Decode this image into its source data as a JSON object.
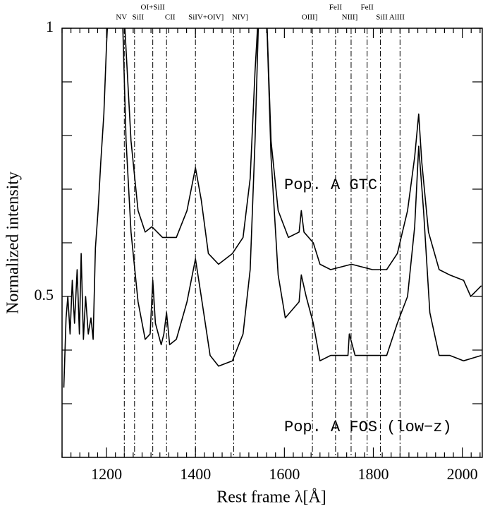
{
  "chart_data": {
    "type": "line",
    "xlabel": "Rest frame λ[Å]",
    "ylabel": "Normalized intensity",
    "xlim": [
      1100,
      2045
    ],
    "ylim": [
      0.2,
      1
    ],
    "xticks": [
      1200,
      1400,
      1600,
      1800,
      2000
    ],
    "xminorticks": [
      1100,
      1120,
      1140,
      1160,
      1180,
      1220,
      1240,
      1260,
      1280,
      1300,
      1320,
      1340,
      1360,
      1380,
      1420,
      1440,
      1460,
      1480,
      1500,
      1520,
      1540,
      1560,
      1580,
      1620,
      1640,
      1660,
      1680,
      1700,
      1720,
      1740,
      1760,
      1780,
      1820,
      1840,
      1860,
      1880,
      1900,
      1920,
      1940,
      1960,
      1980,
      2020,
      2040
    ],
    "yticks": [
      0.5,
      1
    ],
    "yminorticks": [
      0.3,
      0.4,
      0.6,
      0.7,
      0.8,
      0.9
    ],
    "annotations": [
      "Pop. A GTC",
      "Pop. A FOS (low−z)"
    ],
    "lines": [
      {
        "wavelength": 1240,
        "label": "NV"
      },
      {
        "wavelength": 1263,
        "label": "SiII"
      },
      {
        "wavelength": 1304,
        "label": "OI+SiII"
      },
      {
        "wavelength": 1335,
        "label": "CII"
      },
      {
        "wavelength": 1400,
        "label": "SiIV+OIV]"
      },
      {
        "wavelength": 1486,
        "label": "NIV]"
      },
      {
        "wavelength": 1663,
        "label": "OIII]"
      },
      {
        "wavelength": 1715,
        "label": "FeII"
      },
      {
        "wavelength": 1750,
        "label": "NIII]"
      },
      {
        "wavelength": 1786,
        "label": "FeII"
      },
      {
        "wavelength": 1816,
        "label": "SiII AlIII"
      },
      {
        "wavelength": 1860
      }
    ],
    "series": [
      {
        "name": "Pop. A GTC",
        "color": "#000000",
        "x": [
          1240,
          1255,
          1271,
          1287,
          1302,
          1326,
          1357,
          1381,
          1400,
          1413,
          1429,
          1452,
          1483,
          1507,
          1523,
          1534,
          1543,
          1559,
          1570,
          1586,
          1609,
          1633,
          1638,
          1644,
          1665,
          1680,
          1704,
          1751,
          1798,
          1830,
          1854,
          1877,
          1893,
          1902,
          1909,
          1924,
          1948,
          1972,
          2003,
          2019,
          2043
        ],
        "values": [
          1.02,
          0.79,
          0.66,
          0.62,
          0.63,
          0.61,
          0.61,
          0.66,
          0.74,
          0.68,
          0.58,
          0.56,
          0.58,
          0.61,
          0.72,
          0.92,
          1.05,
          1.05,
          0.79,
          0.66,
          0.61,
          0.62,
          0.66,
          0.62,
          0.6,
          0.56,
          0.55,
          0.56,
          0.55,
          0.55,
          0.58,
          0.66,
          0.76,
          0.84,
          0.75,
          0.62,
          0.55,
          0.54,
          0.53,
          0.5,
          0.52
        ]
      },
      {
        "name": "Pop. A FOS (low−z)",
        "color": "#000000",
        "x": [
          1104,
          1109,
          1113,
          1118,
          1123,
          1128,
          1134,
          1139,
          1143,
          1148,
          1153,
          1159,
          1165,
          1170,
          1175,
          1181,
          1187,
          1194,
          1200,
          1205,
          1235,
          1244,
          1255,
          1271,
          1287,
          1298,
          1304,
          1310,
          1323,
          1329,
          1335,
          1342,
          1357,
          1381,
          1400,
          1413,
          1433,
          1452,
          1483,
          1507,
          1523,
          1534,
          1543,
          1559,
          1570,
          1586,
          1602,
          1633,
          1638,
          1649,
          1665,
          1680,
          1704,
          1743,
          1746,
          1759,
          1798,
          1830,
          1854,
          1877,
          1893,
          1902,
          1913,
          1927,
          1948,
          1972,
          2003,
          2043
        ],
        "values": [
          0.33,
          0.46,
          0.5,
          0.43,
          0.53,
          0.45,
          0.55,
          0.43,
          0.58,
          0.42,
          0.5,
          0.43,
          0.46,
          0.42,
          0.59,
          0.66,
          0.75,
          0.84,
          0.97,
          1.05,
          1.05,
          0.79,
          0.62,
          0.49,
          0.42,
          0.43,
          0.53,
          0.45,
          0.41,
          0.43,
          0.47,
          0.41,
          0.42,
          0.49,
          0.57,
          0.5,
          0.39,
          0.37,
          0.38,
          0.43,
          0.55,
          0.79,
          1.05,
          1.05,
          0.76,
          0.54,
          0.46,
          0.49,
          0.54,
          0.5,
          0.45,
          0.38,
          0.39,
          0.39,
          0.43,
          0.39,
          0.39,
          0.39,
          0.45,
          0.5,
          0.63,
          0.78,
          0.66,
          0.47,
          0.39,
          0.39,
          0.38,
          0.39
        ]
      }
    ]
  }
}
